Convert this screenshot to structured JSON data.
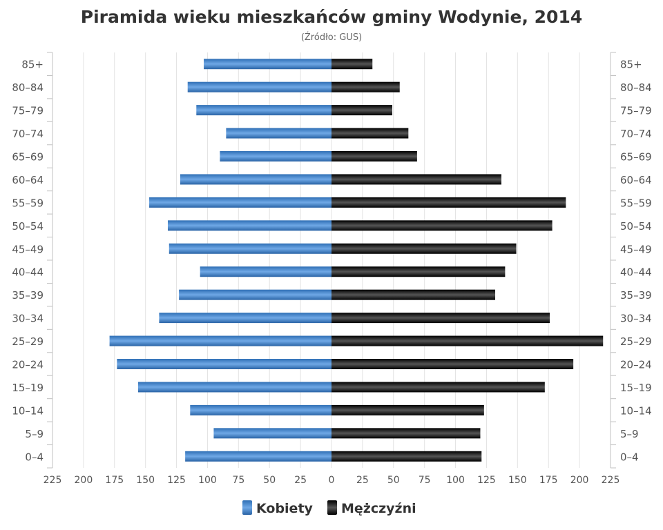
{
  "chart_data": {
    "type": "bar",
    "orientation": "horizontal",
    "layout": "population-pyramid",
    "title": "Piramida wieku mieszkańców gminy Wodynie, 2014",
    "subtitle": "(Źródło: GUS)",
    "categories": [
      "85+",
      "80–84",
      "75–79",
      "70–74",
      "65–69",
      "60–64",
      "55–59",
      "50–54",
      "45–49",
      "40–44",
      "35–39",
      "30–34",
      "25–29",
      "20–24",
      "15–19",
      "10–14",
      "5–9",
      "0–4"
    ],
    "series": [
      {
        "name": "Kobiety",
        "color": "#3d7fc6",
        "values": [
          103,
          116,
          109,
          85,
          90,
          122,
          147,
          132,
          131,
          106,
          123,
          139,
          179,
          173,
          156,
          114,
          95,
          118
        ]
      },
      {
        "name": "Mężczyźni",
        "color": "#1a1a1a",
        "values": [
          33,
          55,
          49,
          62,
          69,
          137,
          189,
          178,
          149,
          140,
          132,
          176,
          219,
          195,
          172,
          123,
          120,
          121
        ]
      }
    ],
    "x_ticks": [
      "225",
      "200",
      "175",
      "150",
      "125",
      "100",
      "75",
      "50",
      "25",
      "0",
      "25",
      "50",
      "75",
      "100",
      "125",
      "150",
      "175",
      "200",
      "225"
    ],
    "xlim": [
      -225,
      225
    ],
    "grid": true,
    "legend_position": "bottom-center"
  }
}
